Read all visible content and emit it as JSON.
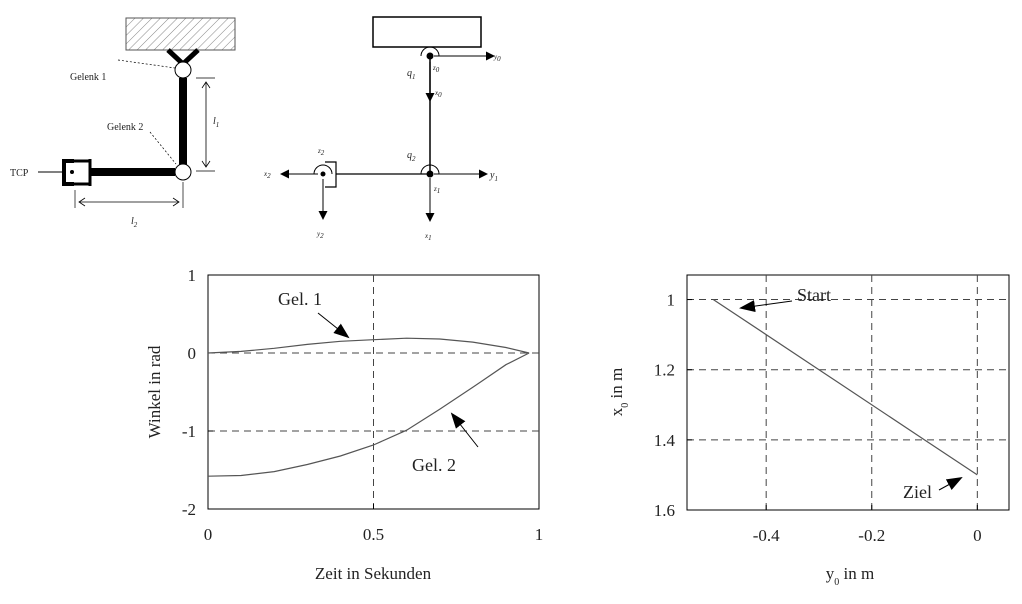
{
  "robot_sketch": {
    "joint1_label": "Gelenk 1",
    "joint2_label": "Gelenk 2",
    "tcp_label": "TCP",
    "l1_label": "l",
    "l1_sub": "1",
    "l2_label": "l",
    "l2_sub": "2"
  },
  "frame_diagram": {
    "y0": "y",
    "y0_sub": "0",
    "z0": "z",
    "z0_sub": "0",
    "q1": "q",
    "q1_sub": "1",
    "x0": "x",
    "x0_sub": "0",
    "q2": "q",
    "q2_sub": "2",
    "y1": "y",
    "y1_sub": "1",
    "z1": "z",
    "z1_sub": "1",
    "x1": "x",
    "x1_sub": "1",
    "z2": "z",
    "z2_sub": "2",
    "x2": "x",
    "x2_sub": "2",
    "y2": "y",
    "y2_sub": "2"
  },
  "chart_data": [
    {
      "type": "line",
      "xlabel": "Zeit in Sekunden",
      "ylabel": "Winkel in rad",
      "xlim": [
        0,
        1
      ],
      "ylim": [
        -2,
        1
      ],
      "xticks": [
        "0",
        "0.5",
        "1"
      ],
      "yticks": [
        "1",
        "0",
        "-1",
        "-2"
      ],
      "grid": "dashed at 0.5 (x) and 0, -1 (y)",
      "series": [
        {
          "name": "Gel. 1",
          "x": [
            0,
            0.1,
            0.2,
            0.3,
            0.4,
            0.5,
            0.6,
            0.7,
            0.8,
            0.9,
            0.97
          ],
          "y": [
            0.0,
            0.02,
            0.06,
            0.11,
            0.15,
            0.17,
            0.19,
            0.18,
            0.14,
            0.07,
            0.0
          ]
        },
        {
          "name": "Gel. 2",
          "x": [
            0,
            0.1,
            0.2,
            0.3,
            0.4,
            0.5,
            0.6,
            0.7,
            0.8,
            0.9,
            0.97
          ],
          "y": [
            -1.58,
            -1.57,
            -1.52,
            -1.43,
            -1.32,
            -1.18,
            -0.99,
            -0.72,
            -0.44,
            -0.15,
            0.0
          ]
        }
      ],
      "annotations": [
        "Gel. 1",
        "Gel. 2"
      ]
    },
    {
      "type": "line",
      "xlabel": "y",
      "xlabel_sub": "0",
      "xlabel_unit": " in m",
      "ylabel": "x",
      "ylabel_sub": "0",
      "ylabel_unit": " in m",
      "xlim": [
        -0.55,
        0.06
      ],
      "ylim": [
        1.6,
        0.93
      ],
      "y_axis_inverted": true,
      "xticks": [
        "-0.4",
        "-0.2",
        "0"
      ],
      "yticks": [
        "1",
        "1.2",
        "1.4",
        "1.6"
      ],
      "grid": "dashed at -0.4, -0.2, 0 (x) and 1, 1.2, 1.4 (y)",
      "series": [
        {
          "name": "",
          "x": [
            -0.5,
            -0.3,
            -0.1,
            0.0
          ],
          "y": [
            1.0,
            1.2,
            1.4,
            1.5
          ]
        }
      ],
      "annotations": [
        "Start",
        "Ziel"
      ]
    }
  ]
}
